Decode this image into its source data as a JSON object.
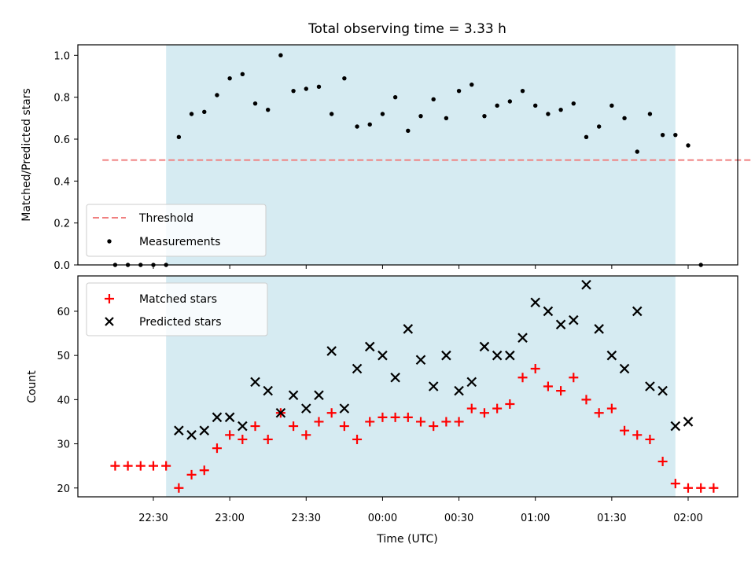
{
  "chart_data": {
    "type": "scatter",
    "title": "Total observing time = 3.33 h",
    "xlabel": "Time (UTC)",
    "x_tick_labels": [
      "22:30",
      "23:00",
      "23:30",
      "00:00",
      "00:30",
      "01:00",
      "01:30",
      "02:00"
    ],
    "shaded_span": [
      "22:35",
      "01:55"
    ],
    "colors": {
      "band": "#add8e6",
      "threshold": "#f08080",
      "matched": "#ff0000",
      "predicted": "#000000",
      "measure": "#000000"
    },
    "panels": [
      {
        "ylabel": "Matched/Predicted stars",
        "ylim": [
          0,
          1.05
        ],
        "y_ticks": [
          "0.0",
          "0.2",
          "0.4",
          "0.6",
          "0.8",
          "1.0"
        ],
        "legend_position": "lower-left",
        "series": [
          {
            "name": "Threshold",
            "kind": "dashed-line",
            "color": "#f08080",
            "x": [
              "22:10",
              "02:25"
            ],
            "y": [
              0.5,
              0.5
            ]
          },
          {
            "name": "Measurements",
            "kind": "dot",
            "color": "#000000",
            "x": [
              "22:15",
              "22:20",
              "22:25",
              "22:30",
              "22:35",
              "22:40",
              "22:45",
              "22:50",
              "22:55",
              "23:00",
              "23:05",
              "23:10",
              "23:15",
              "23:20",
              "23:25",
              "23:30",
              "23:35",
              "23:40",
              "23:45",
              "23:50",
              "23:55",
              "00:00",
              "00:05",
              "00:10",
              "00:15",
              "00:20",
              "00:25",
              "00:30",
              "00:35",
              "00:40",
              "00:45",
              "00:50",
              "00:55",
              "01:00",
              "01:05",
              "01:10",
              "01:15",
              "01:20",
              "01:25",
              "01:30",
              "01:35",
              "01:40",
              "01:45",
              "01:50",
              "01:55",
              "02:00",
              "02:05"
            ],
            "y": [
              0.0,
              0.0,
              0.0,
              0.0,
              0.0,
              0.61,
              0.72,
              0.73,
              0.81,
              0.89,
              0.91,
              0.77,
              0.74,
              1.0,
              0.83,
              0.84,
              0.85,
              0.72,
              0.89,
              0.66,
              0.67,
              0.72,
              0.8,
              0.64,
              0.71,
              0.79,
              0.7,
              0.83,
              0.86,
              0.71,
              0.76,
              0.78,
              0.83,
              0.76,
              0.72,
              0.74,
              0.77,
              0.61,
              0.66,
              0.76,
              0.7,
              0.54,
              0.72,
              0.62,
              0.62,
              0.57,
              0.0
            ]
          }
        ]
      },
      {
        "ylabel": "Count",
        "ylim": [
          18,
          68
        ],
        "y_ticks": [
          "20",
          "30",
          "40",
          "50",
          "60"
        ],
        "legend_position": "upper-left",
        "series": [
          {
            "name": "Matched stars",
            "marker": "+",
            "color": "#ff0000",
            "x": [
              "22:15",
              "22:20",
              "22:25",
              "22:30",
              "22:35",
              "22:40",
              "22:45",
              "22:50",
              "22:55",
              "23:00",
              "23:05",
              "23:10",
              "23:15",
              "23:20",
              "23:25",
              "23:30",
              "23:35",
              "23:40",
              "23:45",
              "23:50",
              "23:55",
              "00:00",
              "00:05",
              "00:10",
              "00:15",
              "00:20",
              "00:25",
              "00:30",
              "00:35",
              "00:40",
              "00:45",
              "00:50",
              "00:55",
              "01:00",
              "01:05",
              "01:10",
              "01:15",
              "01:20",
              "01:25",
              "01:30",
              "01:35",
              "01:40",
              "01:45",
              "01:50",
              "01:55",
              "02:00",
              "02:05",
              "02:10"
            ],
            "y": [
              25,
              25,
              25,
              25,
              25,
              20,
              23,
              24,
              29,
              32,
              31,
              34,
              31,
              37,
              34,
              32,
              35,
              37,
              34,
              31,
              35,
              36,
              36,
              36,
              35,
              34,
              35,
              35,
              38,
              37,
              38,
              39,
              45,
              47,
              43,
              42,
              45,
              40,
              37,
              38,
              33,
              32,
              31,
              26,
              21,
              20,
              20,
              20
            ]
          },
          {
            "name": "Predicted stars",
            "marker": "x",
            "color": "#000000",
            "x": [
              "22:40",
              "22:45",
              "22:50",
              "22:55",
              "23:00",
              "23:05",
              "23:10",
              "23:15",
              "23:20",
              "23:25",
              "23:30",
              "23:35",
              "23:40",
              "23:45",
              "23:50",
              "23:55",
              "00:00",
              "00:05",
              "00:10",
              "00:15",
              "00:20",
              "00:25",
              "00:30",
              "00:35",
              "00:40",
              "00:45",
              "00:50",
              "00:55",
              "01:00",
              "01:05",
              "01:10",
              "01:15",
              "01:20",
              "01:25",
              "01:30",
              "01:35",
              "01:40",
              "01:45",
              "01:50",
              "01:55",
              "02:00"
            ],
            "y": [
              33,
              32,
              33,
              36,
              36,
              34,
              44,
              42,
              37,
              41,
              38,
              41,
              51,
              38,
              47,
              52,
              50,
              45,
              56,
              49,
              43,
              50,
              42,
              44,
              52,
              50,
              50,
              54,
              62,
              60,
              57,
              58,
              66,
              56,
              50,
              47,
              60,
              43,
              42,
              34,
              35
            ]
          }
        ]
      }
    ]
  }
}
